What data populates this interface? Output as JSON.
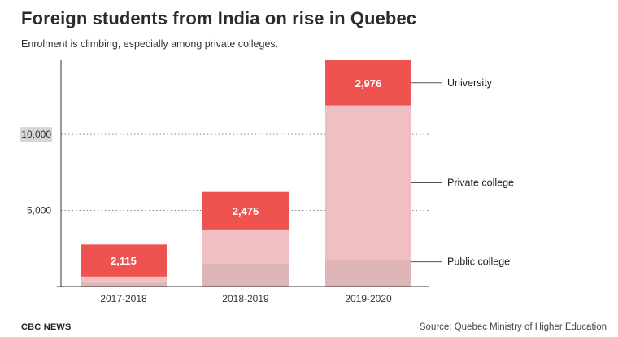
{
  "header": {
    "title": "Foreign students from India on rise in Quebec",
    "subtitle": "Enrolment is climbing, especially among private colleges."
  },
  "footer": {
    "brand": "CBC NEWS",
    "source": "Source: Quebec Ministry of Higher Education"
  },
  "colors": {
    "university": "#ef5350",
    "private_college": "#efbfc1",
    "public_college": "#dfb6b8",
    "axis": "#333333",
    "grid": "#888888",
    "highlight_tick_bg": "#d6d6d6"
  },
  "chart_data": {
    "type": "bar",
    "stacked": true,
    "title": "Foreign students from India on rise in Quebec",
    "subtitle": "Enrolment is climbing, especially among private colleges.",
    "categories": [
      "2017-2018",
      "2018-2019",
      "2019-2020"
    ],
    "series": [
      {
        "name": "Public college",
        "values": [
          250,
          1500,
          1750
        ]
      },
      {
        "name": "Private college",
        "values": [
          400,
          2250,
          10150
        ]
      },
      {
        "name": "University",
        "values": [
          2115,
          2475,
          2976
        ],
        "labels": [
          "2,115",
          "2,475",
          "2,976"
        ]
      }
    ],
    "yticks": [
      {
        "value": 5000,
        "label": "5,000"
      },
      {
        "value": 10000,
        "label": "10,000",
        "highlight": true
      }
    ],
    "ylim": [
      0,
      14876
    ],
    "xlabel": "",
    "ylabel": "",
    "legend": "right, aligned with last bar"
  }
}
